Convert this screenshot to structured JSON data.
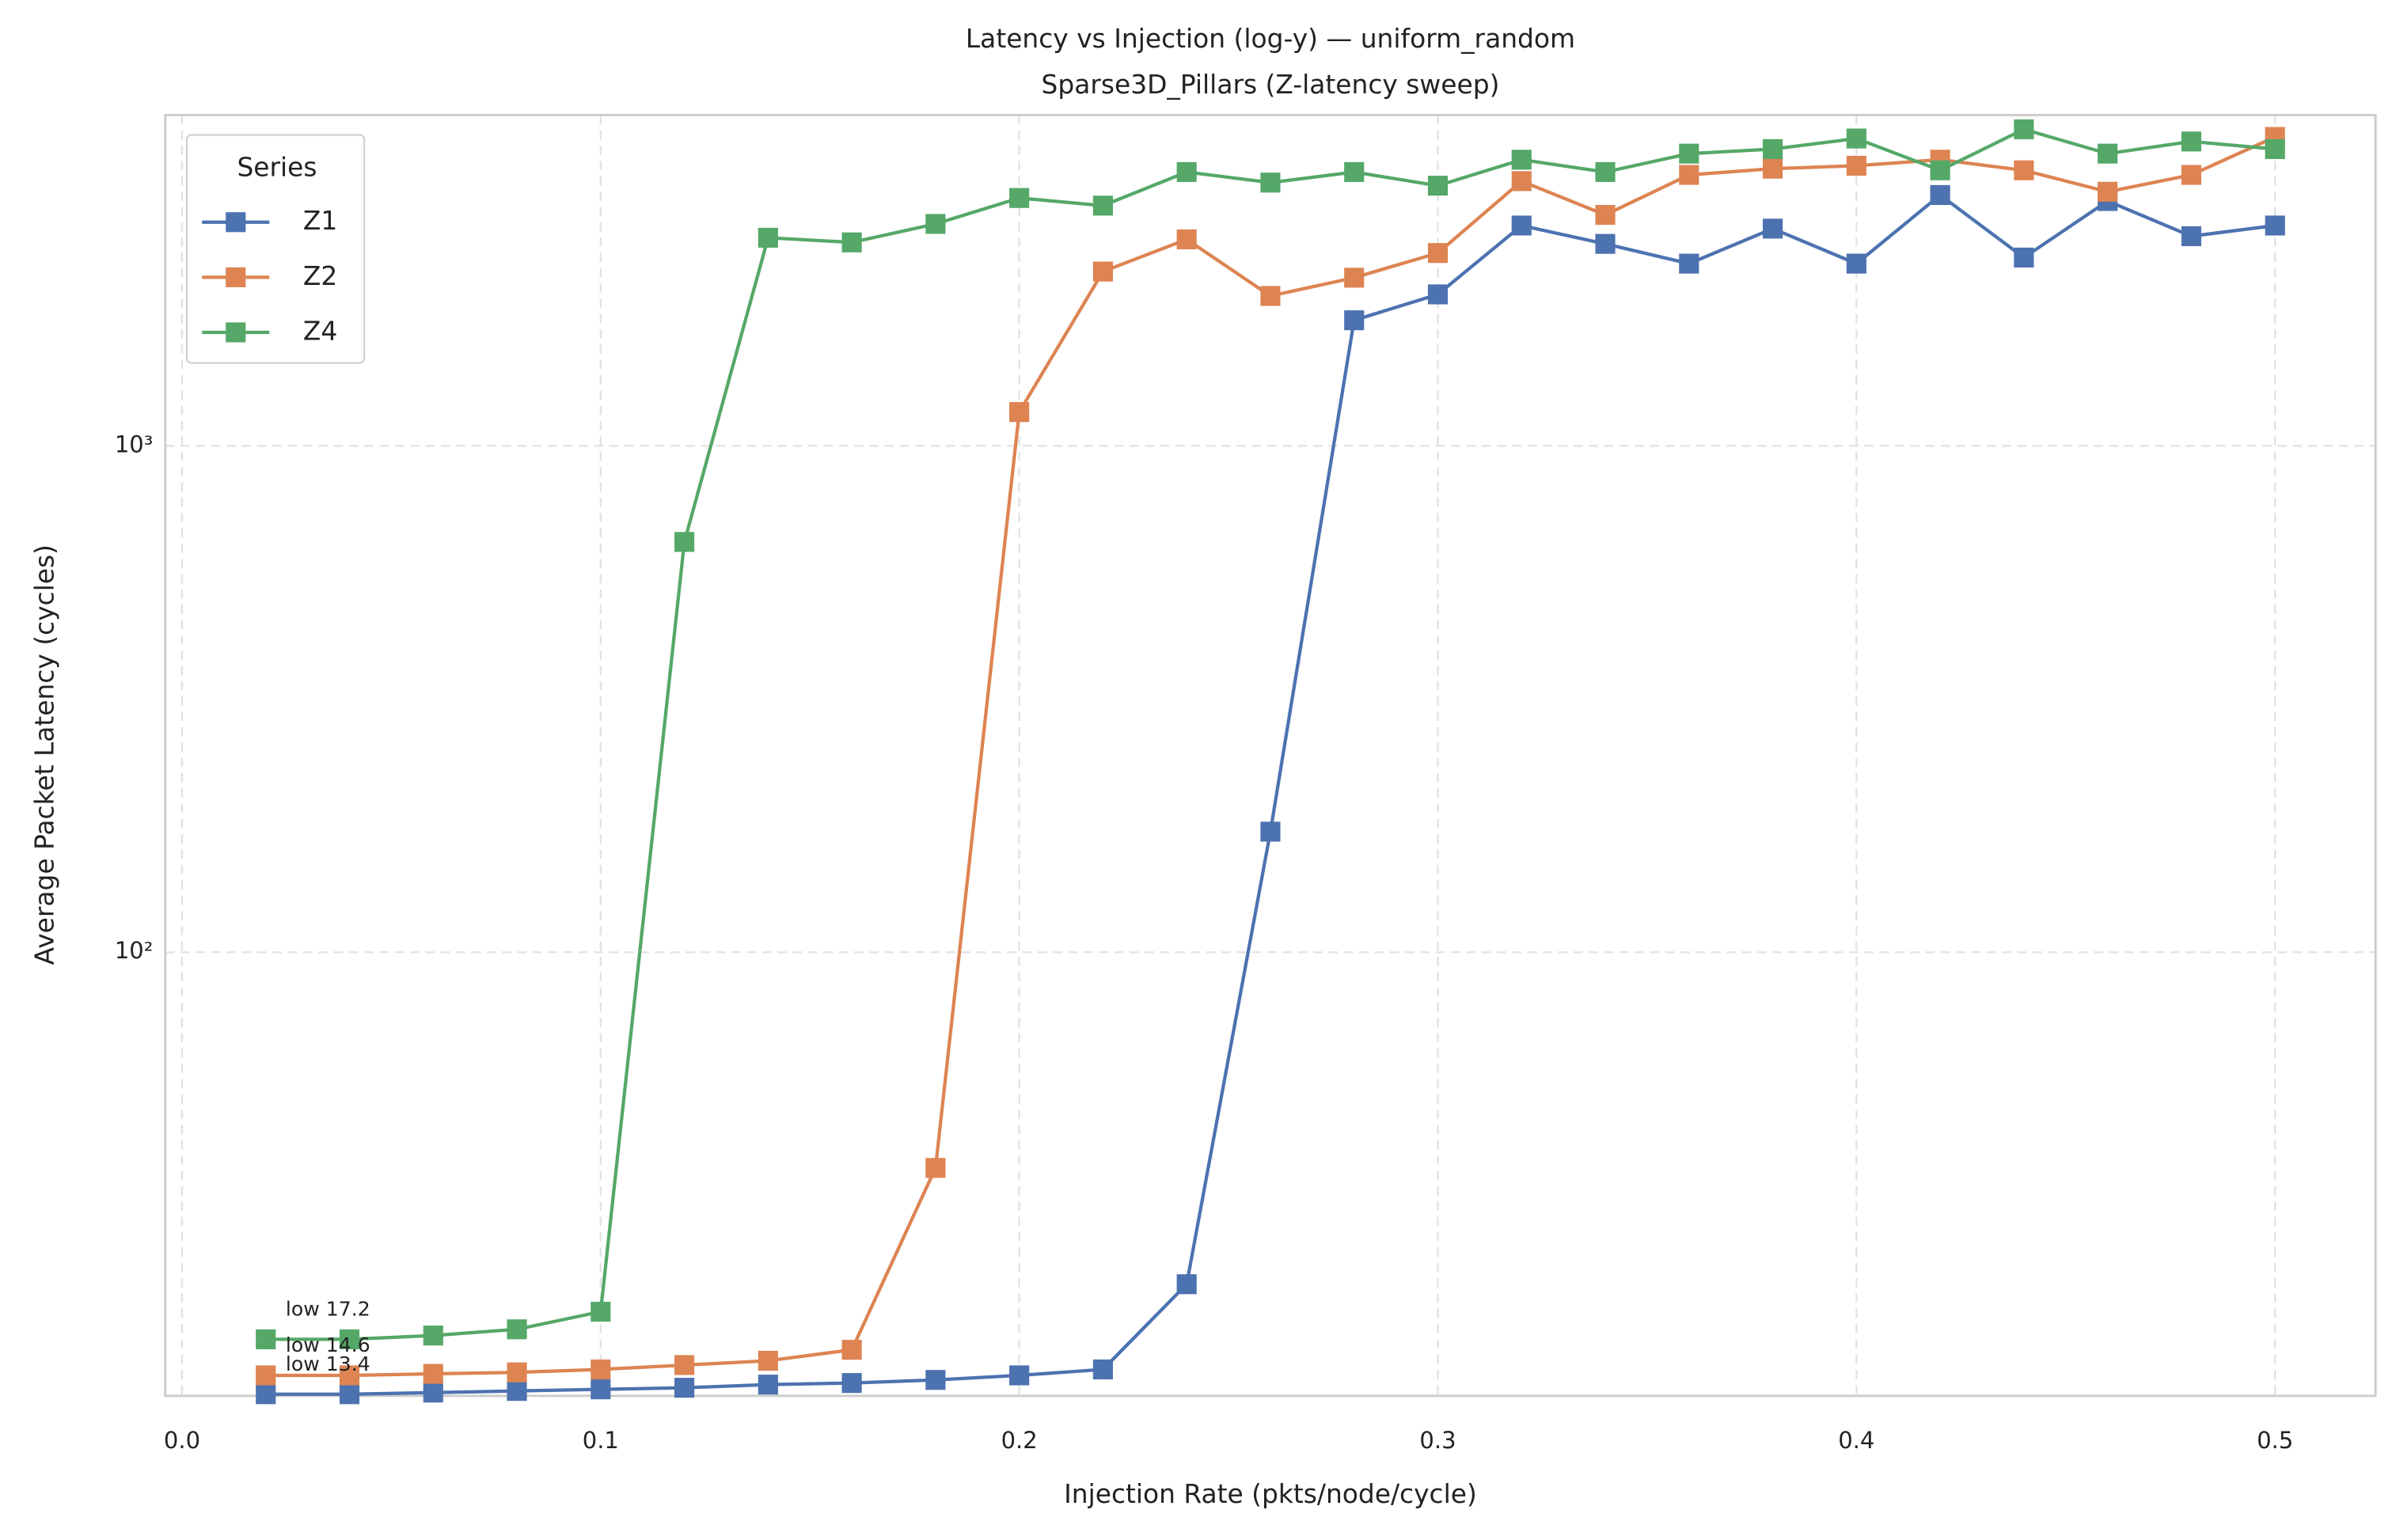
{
  "chart_data": {
    "type": "line",
    "title": "Latency vs Injection (log-y) — uniform_random",
    "subtitle": "Sparse3D_Pillars (Z-latency sweep)",
    "x_label": "Injection Rate (pkts/node/cycle)",
    "y_label": "Average Packet Latency (cycles)",
    "x": [
      0.02,
      0.04,
      0.06,
      0.08,
      0.1,
      0.12,
      0.14,
      0.16,
      0.18,
      0.2,
      0.22,
      0.24,
      0.26,
      0.28,
      0.3,
      0.32,
      0.34,
      0.36,
      0.38,
      0.4,
      0.42,
      0.44,
      0.46,
      0.48,
      0.5
    ],
    "series": [
      {
        "name": "Z1",
        "color": "#4c72b0",
        "values": [
          13.4,
          13.4,
          13.5,
          13.6,
          13.7,
          13.8,
          14.0,
          14.1,
          14.3,
          14.6,
          15.0,
          22.1,
          173,
          1770,
          1991,
          2723,
          2505,
          2290,
          2685,
          2290,
          3128,
          2354,
          3044,
          2594,
          2723
        ]
      },
      {
        "name": "Z2",
        "color": "#dd8452",
        "values": [
          14.6,
          14.6,
          14.7,
          14.8,
          15.0,
          15.3,
          15.6,
          16.4,
          37.5,
          1166,
          2209,
          2557,
          1977,
          2148,
          2403,
          3332,
          2858,
          3428,
          3526,
          3574,
          3673,
          3500,
          3175,
          3428,
          4074
        ]
      },
      {
        "name": "Z4",
        "color": "#55a868",
        "values": [
          17.2,
          17.2,
          17.5,
          18.0,
          19.5,
          646,
          2576,
          2522,
          2743,
          3086,
          2981,
          3473,
          3310,
          3473,
          3264,
          3673,
          3473,
          3776,
          3855,
          4045,
          3500,
          4218,
          3776,
          3990,
          3855
        ]
      }
    ],
    "annotations": [
      {
        "text": "low 17.2",
        "x": 0.02,
        "y": 17.2
      },
      {
        "text": "low 14.6",
        "x": 0.02,
        "y": 14.6
      },
      {
        "text": "low 13.4",
        "x": 0.02,
        "y": 13.4
      }
    ],
    "xlim": [
      -0.004,
      0.524
    ],
    "ylim": [
      13.3,
      4500
    ],
    "xticks": [
      {
        "value": 0,
        "label": "0.0"
      },
      0.1,
      0.2,
      0.3,
      0.4,
      0.5
    ],
    "yticks": [
      {
        "value": 100,
        "label": "10²"
      },
      {
        "value": 1000,
        "label": "10³"
      }
    ],
    "log_y": true,
    "grid": true,
    "legend_title": "Series",
    "legend_corner": "upper left"
  }
}
